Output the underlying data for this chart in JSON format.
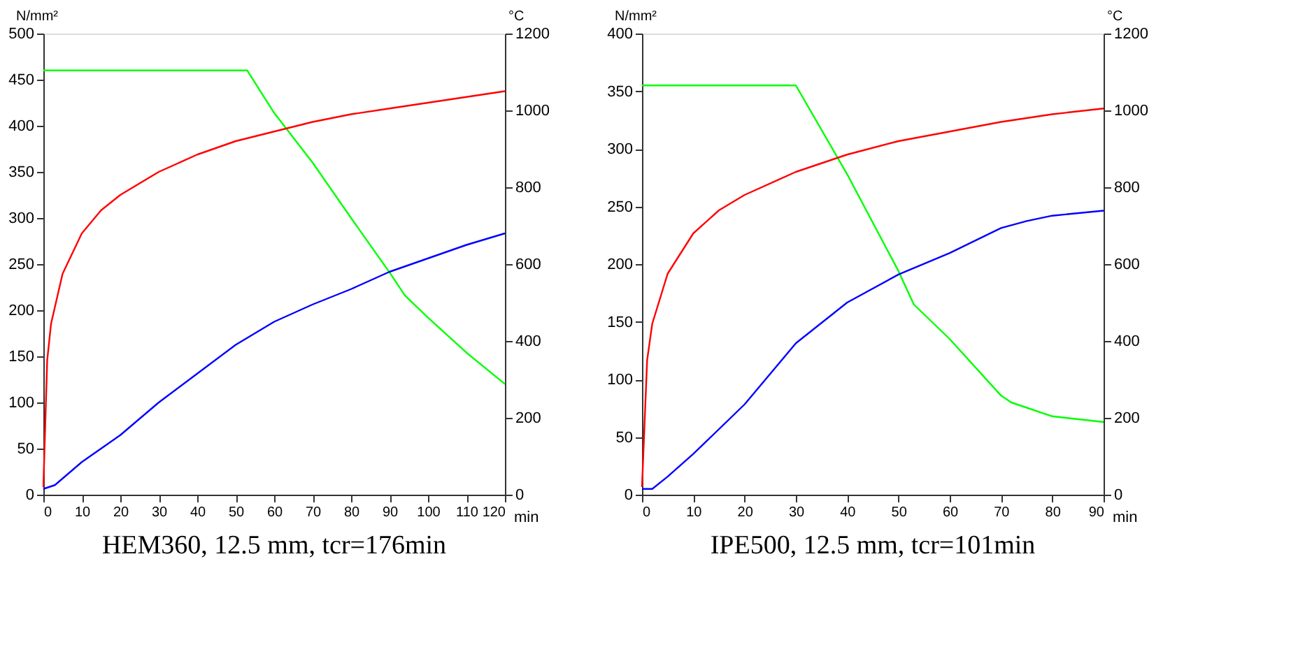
{
  "chart_data": [
    {
      "type": "line",
      "title": "HEM360, 12.5 mm, tcr=176min",
      "xlabel": "min",
      "ylabel": "N/mm²",
      "y2label": "°C",
      "xlim": [
        0,
        120
      ],
      "xticks": [
        0,
        10,
        20,
        30,
        40,
        50,
        60,
        70,
        80,
        90,
        100,
        110,
        120
      ],
      "ylim": [
        0,
        500
      ],
      "yticks": [
        0,
        50,
        100,
        150,
        200,
        250,
        300,
        350,
        400,
        450,
        500
      ],
      "y2lim": [
        0,
        1200
      ],
      "y2ticks": [
        0,
        200,
        400,
        600,
        800,
        1000,
        1200
      ],
      "grid": false,
      "legend": false,
      "marker": "none",
      "line_style": "solid",
      "series": [
        {
          "color": "#ff0000",
          "axis": "y2",
          "x": [
            0,
            1,
            2,
            5,
            10,
            15,
            20,
            30,
            40,
            50,
            60,
            70,
            80,
            90,
            100,
            110,
            120
          ],
          "values": [
            20,
            350,
            445,
            575,
            680,
            740,
            780,
            840,
            885,
            920,
            945,
            970,
            990,
            1005,
            1020,
            1035,
            1050
          ]
        },
        {
          "color": "#0000ff",
          "axis": "y2",
          "x": [
            0,
            3,
            10,
            20,
            30,
            40,
            50,
            60,
            70,
            80,
            90,
            100,
            110,
            120
          ],
          "values": [
            15,
            25,
            85,
            155,
            240,
            315,
            390,
            450,
            495,
            535,
            580,
            615,
            650,
            680
          ]
        },
        {
          "color": "#00ff00",
          "axis": "y",
          "x": [
            0,
            53,
            60,
            70,
            80,
            90,
            94,
            100,
            110,
            120
          ],
          "values": [
            460,
            460,
            414,
            360,
            300,
            241,
            216,
            192,
            154,
            120
          ]
        }
      ]
    },
    {
      "type": "line",
      "title": "IPE500, 12.5 mm, tcr=101min",
      "xlabel": "min",
      "ylabel": "N/mm²",
      "y2label": "°C",
      "xlim": [
        0,
        90
      ],
      "xticks": [
        0,
        10,
        20,
        30,
        40,
        50,
        60,
        70,
        80,
        90
      ],
      "ylim": [
        0,
        400
      ],
      "yticks": [
        0,
        50,
        100,
        150,
        200,
        250,
        300,
        350,
        400
      ],
      "y2lim": [
        0,
        1200
      ],
      "y2ticks": [
        0,
        200,
        400,
        600,
        800,
        1000,
        1200
      ],
      "grid": false,
      "legend": false,
      "marker": "none",
      "line_style": "solid",
      "series": [
        {
          "color": "#ff0000",
          "axis": "y2",
          "x": [
            0,
            1,
            2,
            5,
            10,
            15,
            20,
            30,
            40,
            50,
            60,
            70,
            80,
            90
          ],
          "values": [
            20,
            350,
            445,
            575,
            680,
            740,
            780,
            840,
            885,
            920,
            945,
            970,
            990,
            1005
          ]
        },
        {
          "color": "#0000ff",
          "axis": "y2",
          "x": [
            0,
            2,
            5,
            10,
            20,
            30,
            40,
            50,
            60,
            70,
            75,
            80,
            90
          ],
          "values": [
            15,
            15,
            47,
            106,
            235,
            394,
            500,
            573,
            629,
            694,
            712,
            726,
            739
          ]
        },
        {
          "color": "#00ff00",
          "axis": "y",
          "x": [
            0,
            30,
            40,
            50,
            53,
            60,
            70,
            72,
            80,
            90
          ],
          "values": [
            355,
            355,
            278,
            194,
            165,
            135,
            86,
            80,
            68,
            63
          ]
        }
      ]
    }
  ]
}
